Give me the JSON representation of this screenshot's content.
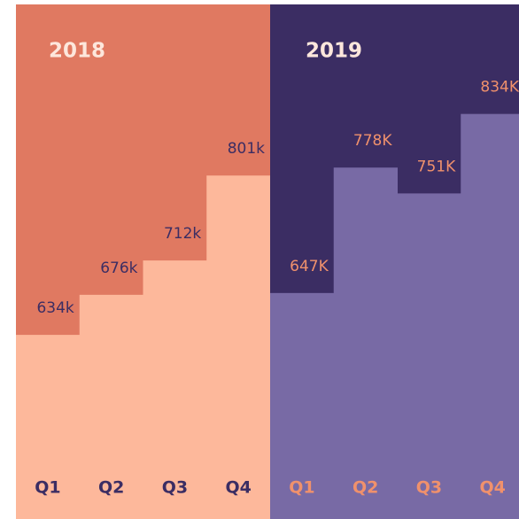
{
  "chart_data": [
    {
      "type": "bar",
      "title": "2018",
      "categories": [
        "Q1",
        "Q2",
        "Q3",
        "Q4"
      ],
      "values": [
        634000,
        676000,
        712000,
        801000
      ],
      "value_labels": [
        "634k",
        "676k",
        "712k",
        "801k"
      ],
      "ylim": [
        441000,
        985000
      ],
      "background": "#e07961",
      "color": "#fdb89b",
      "label_color": "#3b2d63"
    },
    {
      "type": "bar",
      "title": "2019",
      "categories": [
        "Q1",
        "Q2",
        "Q3",
        "Q4"
      ],
      "values": [
        647000,
        778000,
        751000,
        834000
      ],
      "value_labels": [
        "647K",
        "778K",
        "751K",
        "834K"
      ],
      "ylim": [
        411000,
        953000
      ],
      "background": "#3b2d63",
      "color": "#786aa5",
      "label_color": "#f0916c"
    }
  ]
}
